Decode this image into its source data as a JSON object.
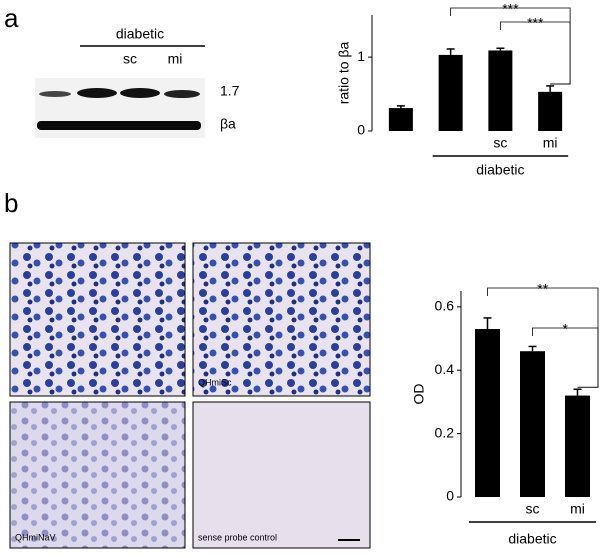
{
  "panel_labels": [
    "a",
    "b"
  ],
  "blot": {
    "group_label": "diabetic",
    "lane_labels": [
      "sc",
      "mi"
    ],
    "band_labels": [
      "1.7",
      "βa"
    ]
  },
  "micrographs": {
    "labels": [
      "QHmiSc",
      "QHmiNaV",
      "sense probe control"
    ]
  },
  "chart_data": [
    {
      "type": "bar",
      "y_label": "ratio to βa",
      "categories": [
        null,
        null,
        "sc",
        "mi"
      ],
      "values": [
        0.31,
        1.03,
        1.09,
        0.53
      ],
      "errors": [
        0.03,
        0.08,
        0.03,
        0.08
      ],
      "color": "#000000",
      "ylim": [
        0,
        1.57
      ],
      "yticks": [
        0,
        1
      ],
      "group_label": "diabetic",
      "annotations": [
        "***",
        "***"
      ]
    },
    {
      "type": "bar",
      "y_label": "OD",
      "categories": [
        null,
        "sc",
        "mi"
      ],
      "values": [
        0.53,
        0.46,
        0.32
      ],
      "errors": [
        0.035,
        0.015,
        0.02
      ],
      "color": "#000000",
      "ylim": [
        0,
        0.65
      ],
      "yticks": [
        0,
        0.2,
        0.4,
        0.6
      ],
      "group_label": "diabetic",
      "annotations": [
        "**",
        "*"
      ]
    }
  ]
}
